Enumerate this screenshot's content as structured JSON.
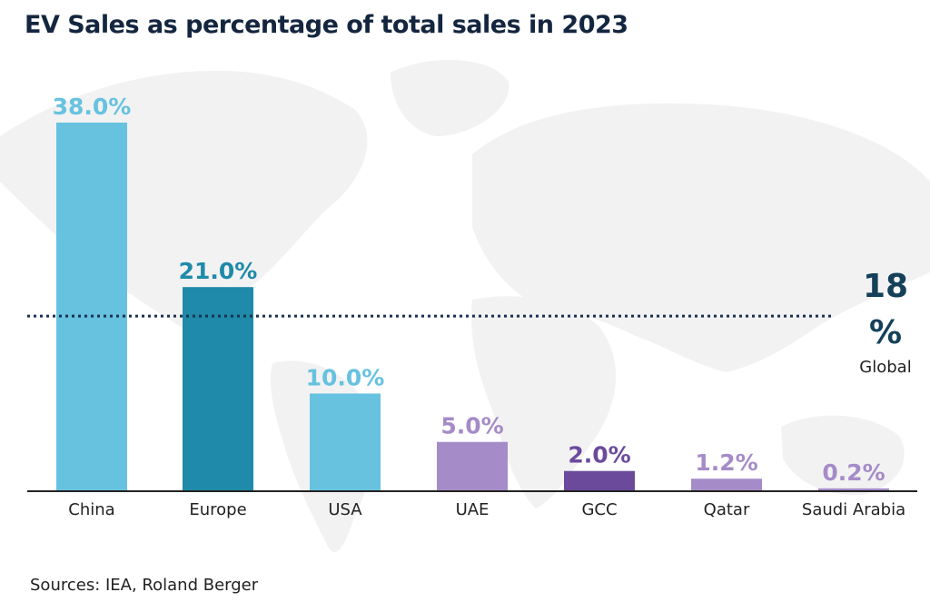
{
  "title": "EV Sales as percentage of total sales in 2023",
  "global": {
    "value_text": "18",
    "unit": "%",
    "label": "Global"
  },
  "sources": {
    "prefix": "Sources",
    "text": ": IEA, Roland Berger"
  },
  "colors": {
    "light_blue": "#67c2df",
    "teal": "#1f8aa9",
    "light_purple": "#a58bc8",
    "dark_purple": "#6b4a9c",
    "reference_line": "#1a3350",
    "axis": "#222222"
  },
  "chart_data": {
    "type": "bar",
    "title": "EV Sales as percentage of total sales in 2023",
    "xlabel": "",
    "ylabel": "",
    "categories": [
      "China",
      "Europe",
      "USA",
      "UAE",
      "GCC",
      "Qatar",
      "Saudi Arabia"
    ],
    "values": [
      38.0,
      21.0,
      10.0,
      5.0,
      2.0,
      1.2,
      0.2
    ],
    "value_labels": [
      "38.0%",
      "21.0%",
      "10.0%",
      "5.0%",
      "2.0%",
      "1.2%",
      "0.2%"
    ],
    "bar_colors": [
      "#67c2df",
      "#1f8aa9",
      "#67c2df",
      "#a58bc8",
      "#6b4a9c",
      "#a58bc8",
      "#a58bc8"
    ],
    "ylim": [
      0,
      38
    ],
    "grid": false,
    "reference_line": {
      "value": 18,
      "label": "18 % Global",
      "style": "dotted"
    }
  }
}
